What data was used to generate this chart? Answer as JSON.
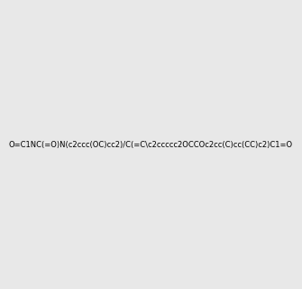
{
  "smiles": "O=C1NC(=O)N(c2ccc(OC)cc2)/C(=C\\c2ccccc2OCCOc2cc(C)cc(CC)c2)C1=O",
  "image_size": 300,
  "background_color": "#e8e8e8"
}
